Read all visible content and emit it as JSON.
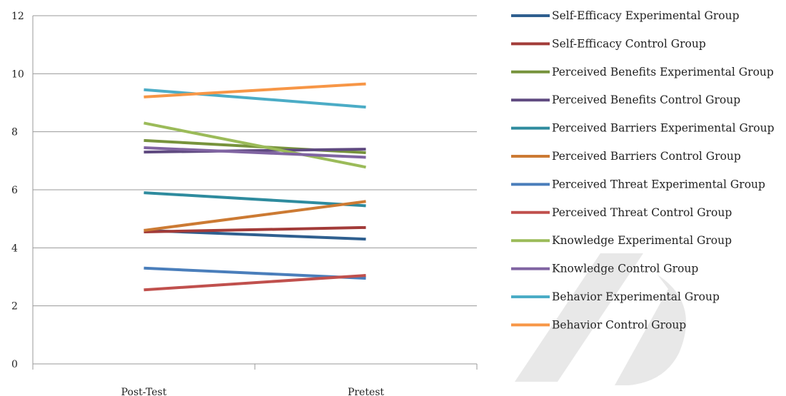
{
  "chart_data": {
    "type": "line",
    "categories": [
      "Post-Test",
      "Pretest"
    ],
    "ylim": [
      0,
      12
    ],
    "yticks": [
      0,
      2,
      4,
      6,
      8,
      10,
      12
    ],
    "grid": true,
    "legend_position": "right",
    "title": "",
    "xlabel": "",
    "ylabel": "",
    "series": [
      {
        "name": "Self-Efficacy Experimental Group",
        "values": [
          4.6,
          4.3
        ],
        "color": "#2f5f8f"
      },
      {
        "name": "Self-Efficacy Control Group",
        "values": [
          4.55,
          4.7
        ],
        "color": "#a23b39"
      },
      {
        "name": "Perceived Benefits Experimental Group",
        "values": [
          7.7,
          7.28
        ],
        "color": "#77933c"
      },
      {
        "name": "Perceived Benefits Control Group",
        "values": [
          7.3,
          7.4
        ],
        "color": "#5f4a80"
      },
      {
        "name": "Perceived Barriers Experimental Group",
        "values": [
          5.9,
          5.45
        ],
        "color": "#2e8b9e"
      },
      {
        "name": "Perceived Barriers Control Group",
        "values": [
          4.6,
          5.6
        ],
        "color": "#cc7a33"
      },
      {
        "name": "Perceived Threat Experimental Group",
        "values": [
          3.3,
          2.95
        ],
        "color": "#4a7ebb"
      },
      {
        "name": "Perceived Threat Control Group",
        "values": [
          2.55,
          3.05
        ],
        "color": "#c0504d"
      },
      {
        "name": "Knowledge Experimental Group",
        "values": [
          8.3,
          6.78
        ],
        "color": "#9bbb59"
      },
      {
        "name": "Knowledge Control Group",
        "values": [
          7.45,
          7.12
        ],
        "color": "#8064a2"
      },
      {
        "name": "Behavior Experimental Group",
        "values": [
          9.45,
          8.85
        ],
        "color": "#4bacc6"
      },
      {
        "name": "Behavior Control Group",
        "values": [
          9.2,
          9.65
        ],
        "color": "#f79646"
      }
    ]
  }
}
